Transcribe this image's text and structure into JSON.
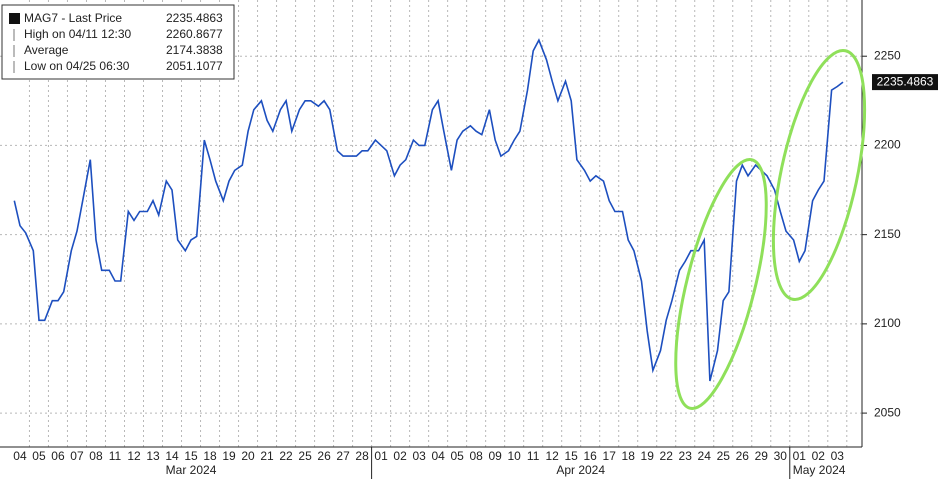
{
  "chart_data": {
    "type": "line",
    "legend": [
      {
        "label": "MAG7 - Last Price",
        "value": "2235.4863"
      },
      {
        "label": "High on 04/11 12:30",
        "value": "2260.8677"
      },
      {
        "label": "Average",
        "value": "2174.3838"
      },
      {
        "label": "Low on 04/25 06:30",
        "value": "2051.1077"
      }
    ],
    "x": [
      -0.3,
      0,
      0.3,
      0.7,
      1,
      1.3,
      1.7,
      2,
      2.3,
      2.7,
      3,
      3.3,
      3.7,
      4,
      4.3,
      4.7,
      5,
      5.3,
      5.7,
      6,
      6.3,
      6.7,
      7,
      7.3,
      7.7,
      8,
      8.3,
      8.7,
      9,
      9.3,
      9.7,
      10,
      10.3,
      10.7,
      11,
      11.3,
      11.7,
      12,
      12.3,
      12.7,
      13,
      13.3,
      13.7,
      14,
      14.3,
      14.7,
      15,
      15.3,
      15.7,
      16,
      16.3,
      16.7,
      17,
      17.3,
      17.7,
      18,
      18.3,
      18.7,
      19,
      19.3,
      19.7,
      20,
      20.3,
      20.7,
      21,
      21.3,
      21.7,
      22,
      22.3,
      22.7,
      23,
      23.3,
      23.7,
      24,
      24.3,
      24.7,
      25,
      25.3,
      25.7,
      26,
      26.3,
      26.7,
      27,
      27.3,
      27.7,
      28,
      28.3,
      28.7,
      29,
      29.3,
      29.7,
      30,
      30.3,
      30.7,
      31,
      31.3,
      31.7,
      32,
      32.3,
      32.7,
      33,
      33.3,
      33.7,
      34,
      34.3,
      34.7,
      35,
      35.3,
      35.7,
      36,
      36.3,
      36.7,
      37,
      37.3,
      37.7,
      38,
      38.3,
      38.7,
      39,
      39.3,
      39.7,
      40,
      40.3,
      40.7,
      41,
      41.3,
      41.7,
      42,
      42.3,
      42.7,
      43,
      43.3
    ],
    "series": [
      {
        "name": "MAG7 - Last Price",
        "color": "#1d4fbf",
        "values": [
          2169,
          2155,
          2151,
          2141,
          2102,
          2102,
          2113,
          2113,
          2118,
          2141,
          2152,
          2169,
          2192,
          2147,
          2130,
          2130,
          2124,
          2124,
          2163,
          2158,
          2163,
          2163,
          2169,
          2161,
          2180,
          2175,
          2147,
          2141,
          2147,
          2149,
          2203,
          2192,
          2180,
          2169,
          2180,
          2186,
          2189,
          2208,
          2220,
          2225,
          2214,
          2208,
          2220,
          2225,
          2208,
          2220,
          2225,
          2225,
          2222,
          2225,
          2220,
          2197,
          2194,
          2194,
          2194,
          2197,
          2197,
          2203,
          2200,
          2197,
          2183,
          2189,
          2192,
          2203,
          2200,
          2200,
          2220,
          2225,
          2208,
          2186,
          2203,
          2208,
          2211,
          2208,
          2206,
          2220,
          2203,
          2194,
          2197,
          2203,
          2208,
          2231,
          2253,
          2259,
          2248,
          2236,
          2225,
          2236,
          2225,
          2192,
          2186,
          2180,
          2183,
          2180,
          2169,
          2163,
          2163,
          2147,
          2141,
          2124,
          2096,
          2074,
          2085,
          2102,
          2113,
          2130,
          2135,
          2141,
          2141,
          2147,
          2068,
          2085,
          2113,
          2118,
          2180,
          2189,
          2183,
          2189,
          2186,
          2183,
          2175,
          2163,
          2152,
          2147,
          2135,
          2141,
          2169,
          2175,
          2180,
          2231,
          2233,
          2235.4863
        ]
      }
    ],
    "xlim": [
      -1.05,
      44.3
    ],
    "xticks": [
      {
        "value": 0,
        "label": "04"
      },
      {
        "value": 1,
        "label": "05"
      },
      {
        "value": 2,
        "label": "06"
      },
      {
        "value": 3,
        "label": "07"
      },
      {
        "value": 4,
        "label": "08"
      },
      {
        "value": 5,
        "label": "11"
      },
      {
        "value": 6,
        "label": "12"
      },
      {
        "value": 7,
        "label": "13"
      },
      {
        "value": 8,
        "label": "14"
      },
      {
        "value": 9,
        "label": "15"
      },
      {
        "value": 10,
        "label": "18"
      },
      {
        "value": 11,
        "label": "19"
      },
      {
        "value": 12,
        "label": "20"
      },
      {
        "value": 13,
        "label": "21"
      },
      {
        "value": 14,
        "label": "22"
      },
      {
        "value": 15,
        "label": "25"
      },
      {
        "value": 16,
        "label": "26"
      },
      {
        "value": 17,
        "label": "27"
      },
      {
        "value": 18,
        "label": "28"
      },
      {
        "value": 19,
        "label": "01"
      },
      {
        "value": 20,
        "label": "02"
      },
      {
        "value": 21,
        "label": "03"
      },
      {
        "value": 22,
        "label": "04"
      },
      {
        "value": 23,
        "label": "05"
      },
      {
        "value": 24,
        "label": "08"
      },
      {
        "value": 25,
        "label": "09"
      },
      {
        "value": 26,
        "label": "10"
      },
      {
        "value": 27,
        "label": "11"
      },
      {
        "value": 28,
        "label": "12"
      },
      {
        "value": 29,
        "label": "15"
      },
      {
        "value": 30,
        "label": "16"
      },
      {
        "value": 31,
        "label": "17"
      },
      {
        "value": 32,
        "label": "18"
      },
      {
        "value": 33,
        "label": "19"
      },
      {
        "value": 34,
        "label": "22"
      },
      {
        "value": 35,
        "label": "23"
      },
      {
        "value": 36,
        "label": "24"
      },
      {
        "value": 37,
        "label": "25"
      },
      {
        "value": 38,
        "label": "26"
      },
      {
        "value": 39,
        "label": "29"
      },
      {
        "value": 40,
        "label": "30"
      },
      {
        "value": 41,
        "label": "01"
      },
      {
        "value": 42,
        "label": "02"
      },
      {
        "value": 43,
        "label": "03"
      }
    ],
    "x_groups": [
      "Mar 2024",
      "Apr 2024",
      "May 2024"
    ],
    "ylim": [
      2031,
      2281.5
    ],
    "yticks": [
      2050,
      2100,
      2150,
      2200,
      2250
    ],
    "grid": true
  }
}
